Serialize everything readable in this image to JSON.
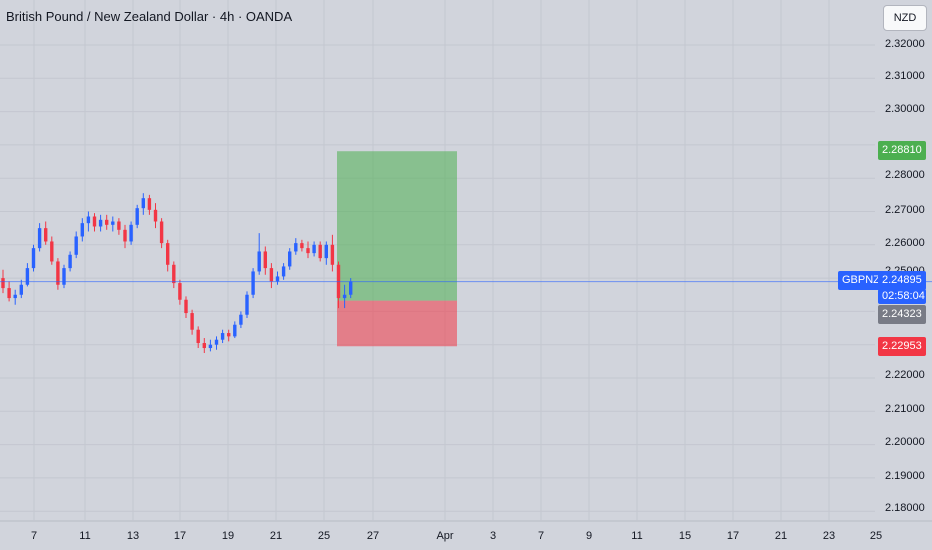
{
  "header": {
    "title": "British Pound / New Zealand Dollar · 4h · OANDA"
  },
  "toolbar": {
    "currency_label": "NZD"
  },
  "colors": {
    "bull": "#2962ff",
    "bear": "#f23645",
    "target": "#4caf50",
    "stop": "#f23645",
    "price_line": "#2962ff",
    "background": "#d1d4dc",
    "grid": "#c4c7d0"
  },
  "price_axis": {
    "ticks": [
      "2.32000",
      "2.31000",
      "2.30000",
      "2.28000",
      "2.27000",
      "2.26000",
      "2.25000",
      "2.22000",
      "2.21000",
      "2.20000",
      "2.19000",
      "2.18000"
    ]
  },
  "time_axis": {
    "ticks": [
      "7",
      "11",
      "13",
      "17",
      "19",
      "21",
      "25",
      "27",
      "Apr",
      "3",
      "7",
      "9",
      "11",
      "15",
      "17",
      "21",
      "23",
      "25"
    ]
  },
  "markers": {
    "symbol": "GBPNZD",
    "last_price": "2.24895",
    "countdown": "02:58:04",
    "target_price": "2.28810",
    "entry_price": "2.24323",
    "stop_price": "2.22953"
  },
  "chart_data": {
    "type": "candlestick",
    "ylim": [
      2.175,
      2.3275
    ],
    "position": {
      "direction": "long",
      "entry": 2.24323,
      "target": 2.2881,
      "stop": 2.22953
    },
    "candles": [
      [
        2.25,
        2.2525,
        2.2455,
        2.247
      ],
      [
        2.247,
        2.249,
        2.243,
        2.244
      ],
      [
        2.244,
        2.2465,
        2.242,
        2.245
      ],
      [
        2.245,
        2.2495,
        2.244,
        2.248
      ],
      [
        2.248,
        2.2545,
        2.2475,
        2.253
      ],
      [
        2.253,
        2.26,
        2.252,
        2.259
      ],
      [
        2.259,
        2.2665,
        2.258,
        2.265
      ],
      [
        2.265,
        2.267,
        2.26,
        2.261
      ],
      [
        2.261,
        2.2625,
        2.254,
        2.255
      ],
      [
        2.255,
        2.256,
        2.2465,
        2.248
      ],
      [
        2.248,
        2.254,
        2.247,
        2.253
      ],
      [
        2.253,
        2.258,
        2.252,
        2.257
      ],
      [
        2.257,
        2.264,
        2.256,
        2.2625
      ],
      [
        2.2625,
        2.268,
        2.261,
        2.2665
      ],
      [
        2.2665,
        2.27,
        2.264,
        2.2685
      ],
      [
        2.2685,
        2.2695,
        2.264,
        2.2655
      ],
      [
        2.2655,
        2.269,
        2.264,
        2.2675
      ],
      [
        2.2675,
        2.269,
        2.2645,
        2.266
      ],
      [
        2.266,
        2.2685,
        2.264,
        2.267
      ],
      [
        2.267,
        2.268,
        2.263,
        2.2645
      ],
      [
        2.2645,
        2.266,
        2.259,
        2.261
      ],
      [
        2.261,
        2.267,
        2.26,
        2.266
      ],
      [
        2.266,
        2.272,
        2.265,
        2.271
      ],
      [
        2.271,
        2.2755,
        2.269,
        2.274
      ],
      [
        2.274,
        2.275,
        2.269,
        2.2705
      ],
      [
        2.2705,
        2.2725,
        2.265,
        2.267
      ],
      [
        2.267,
        2.268,
        2.259,
        2.2605
      ],
      [
        2.2605,
        2.2615,
        2.252,
        2.254
      ],
      [
        2.254,
        2.255,
        2.247,
        2.2485
      ],
      [
        2.2485,
        2.2495,
        2.242,
        2.2435
      ],
      [
        2.2435,
        2.2445,
        2.238,
        2.2395
      ],
      [
        2.2395,
        2.2405,
        2.233,
        2.2345
      ],
      [
        2.2345,
        2.2355,
        2.229,
        2.2305
      ],
      [
        2.2305,
        2.232,
        2.2275,
        2.229
      ],
      [
        2.229,
        2.2315,
        2.228,
        2.23
      ],
      [
        2.23,
        2.2325,
        2.2285,
        2.2315
      ],
      [
        2.2315,
        2.2345,
        2.2305,
        2.2335
      ],
      [
        2.2335,
        2.2345,
        2.231,
        2.2325
      ],
      [
        2.2325,
        2.237,
        2.232,
        2.236
      ],
      [
        2.236,
        2.24,
        2.235,
        2.239
      ],
      [
        2.239,
        2.246,
        2.238,
        2.245
      ],
      [
        2.245,
        2.253,
        2.244,
        2.252
      ],
      [
        2.252,
        2.2635,
        2.251,
        2.258
      ],
      [
        2.258,
        2.2595,
        2.251,
        2.253
      ],
      [
        2.253,
        2.2545,
        2.247,
        2.249
      ],
      [
        2.249,
        2.252,
        2.248,
        2.2505
      ],
      [
        2.2505,
        2.2545,
        2.2495,
        2.2535
      ],
      [
        2.2535,
        2.259,
        2.2525,
        2.258
      ],
      [
        2.258,
        2.262,
        2.257,
        2.2605
      ],
      [
        2.2605,
        2.2615,
        2.258,
        2.259
      ],
      [
        2.259,
        2.261,
        2.256,
        2.2575
      ],
      [
        2.2575,
        2.261,
        2.2565,
        2.26
      ],
      [
        2.26,
        2.261,
        2.255,
        2.256
      ],
      [
        2.256,
        2.261,
        2.254,
        2.26
      ],
      [
        2.26,
        2.263,
        2.252,
        2.254
      ],
      [
        2.254,
        2.255,
        2.241,
        2.244
      ],
      [
        2.244,
        2.248,
        2.241,
        2.245
      ],
      [
        2.245,
        2.25,
        2.244,
        2.249
      ]
    ]
  }
}
